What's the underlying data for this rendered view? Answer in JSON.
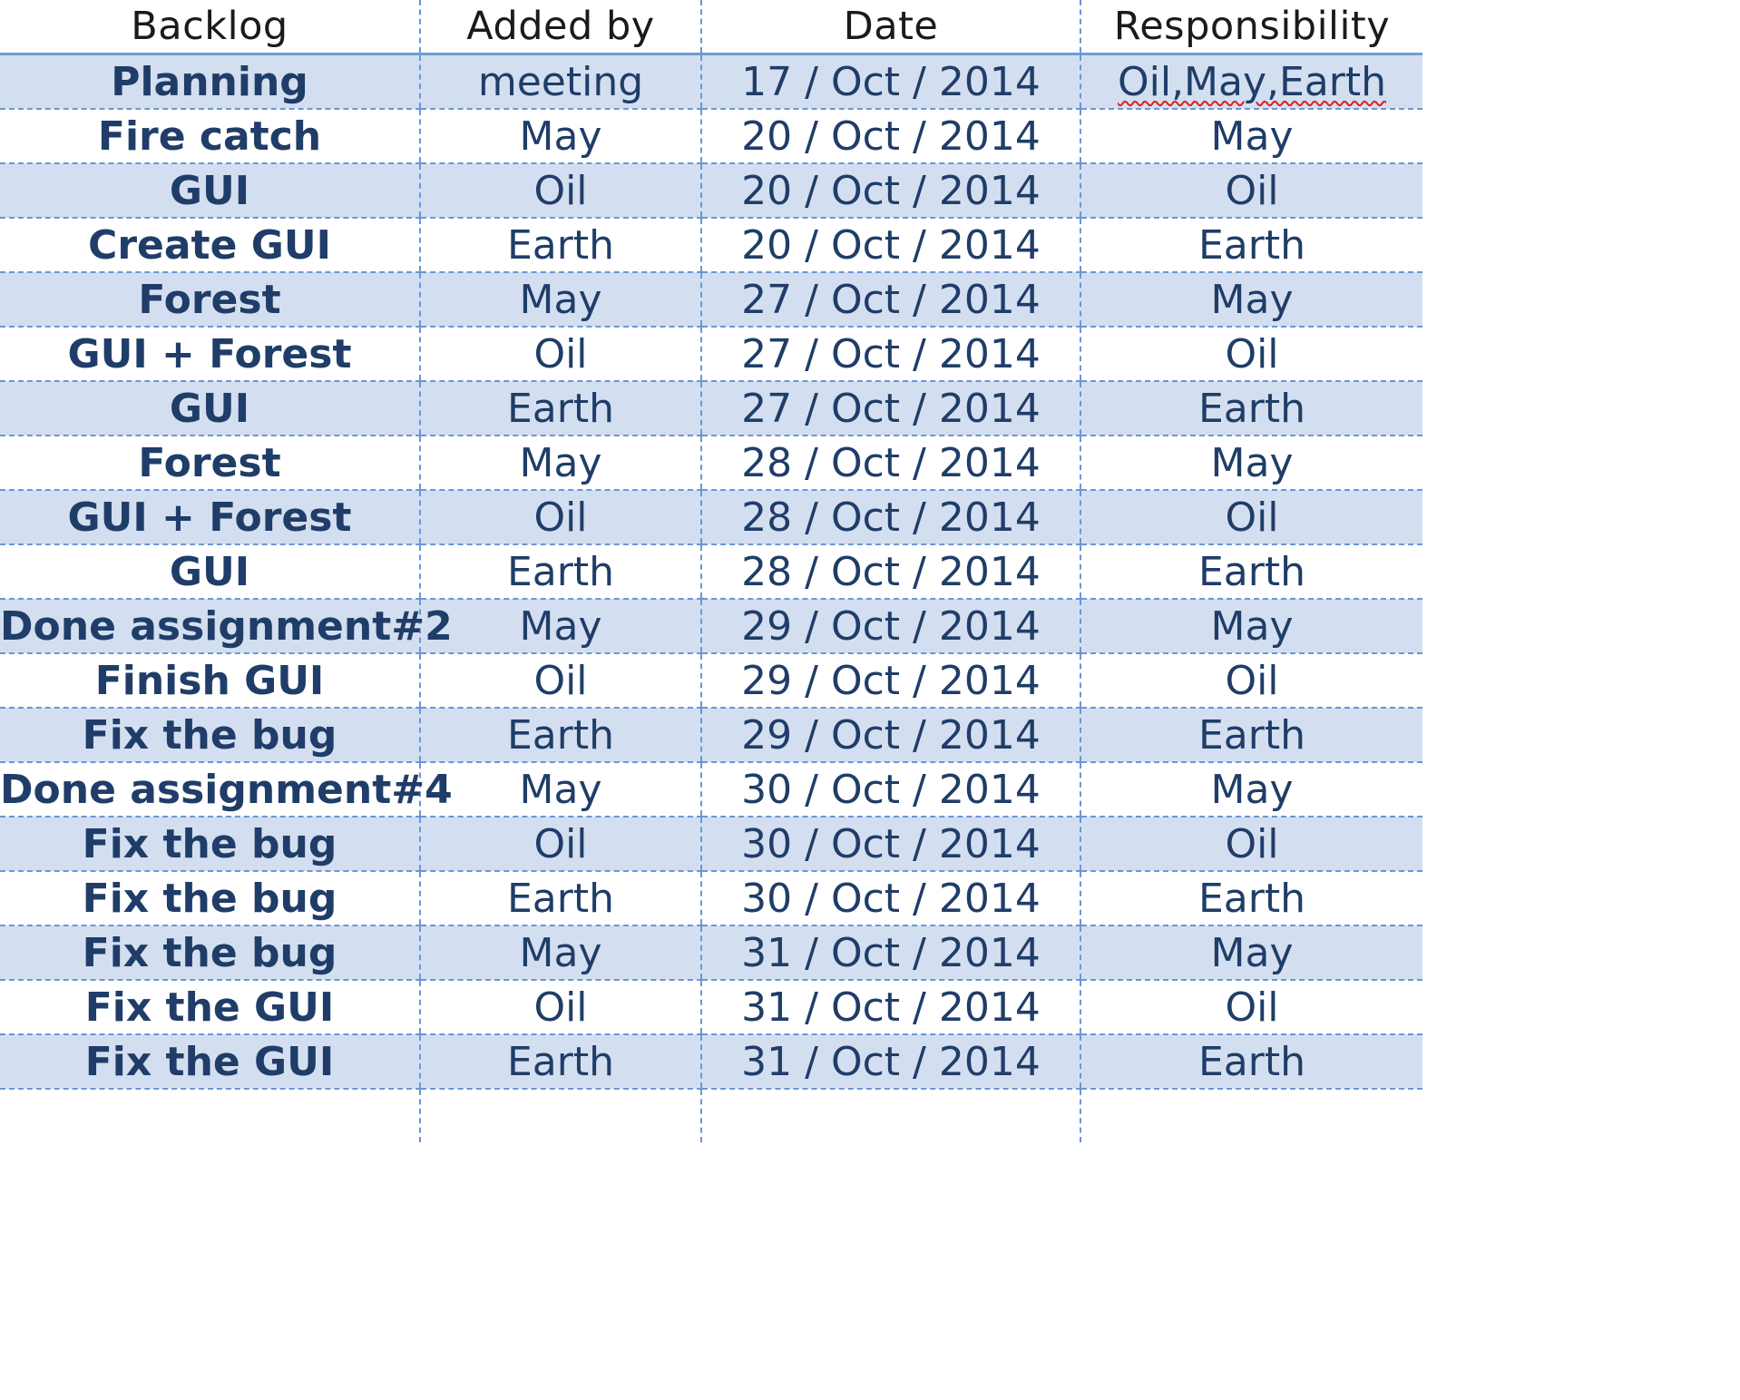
{
  "table": {
    "headers": [
      "Backlog",
      "Added by",
      "Date",
      "Responsibility"
    ],
    "rows": [
      {
        "backlog": "Planning",
        "added_by": "meeting",
        "date": "17 / Oct / 2014",
        "responsibility": "Oil,May,Earth"
      },
      {
        "backlog": "Fire catch",
        "added_by": "May",
        "date": "20 / Oct / 2014",
        "responsibility": "May"
      },
      {
        "backlog": "GUI",
        "added_by": "Oil",
        "date": "20 / Oct / 2014",
        "responsibility": "Oil"
      },
      {
        "backlog": "Create GUI",
        "added_by": "Earth",
        "date": "20 / Oct / 2014",
        "responsibility": "Earth"
      },
      {
        "backlog": "Forest",
        "added_by": "May",
        "date": "27 / Oct / 2014",
        "responsibility": "May"
      },
      {
        "backlog": "GUI + Forest",
        "added_by": "Oil",
        "date": "27 / Oct / 2014",
        "responsibility": "Oil"
      },
      {
        "backlog": "GUI",
        "added_by": "Earth",
        "date": "27 / Oct / 2014",
        "responsibility": "Earth"
      },
      {
        "backlog": "Forest",
        "added_by": "May",
        "date": "28 / Oct / 2014",
        "responsibility": "May"
      },
      {
        "backlog": "GUI + Forest",
        "added_by": "Oil",
        "date": "28 / Oct / 2014",
        "responsibility": "Oil"
      },
      {
        "backlog": "GUI",
        "added_by": "Earth",
        "date": "28 / Oct / 2014",
        "responsibility": "Earth"
      },
      {
        "backlog": "Done assignment#2",
        "added_by": "May",
        "date": "29 / Oct / 2014",
        "responsibility": "May"
      },
      {
        "backlog": "Finish GUI",
        "added_by": "Oil",
        "date": "29 / Oct / 2014",
        "responsibility": "Oil"
      },
      {
        "backlog": "Fix the bug",
        "added_by": "Earth",
        "date": "29 / Oct / 2014",
        "responsibility": "Earth"
      },
      {
        "backlog": "Done assignment#4",
        "added_by": "May",
        "date": "30 / Oct / 2014",
        "responsibility": "May"
      },
      {
        "backlog": "Fix the bug",
        "added_by": "Oil",
        "date": "30 / Oct / 2014",
        "responsibility": "Oil"
      },
      {
        "backlog": "Fix the bug",
        "added_by": "Earth",
        "date": "30 / Oct / 2014",
        "responsibility": "Earth"
      },
      {
        "backlog": "Fix the bug",
        "added_by": "May",
        "date": "31 / Oct / 2014",
        "responsibility": "May"
      },
      {
        "backlog": "Fix the GUI",
        "added_by": "Oil",
        "date": "31 / Oct / 2014",
        "responsibility": "Oil"
      },
      {
        "backlog": "Fix the GUI",
        "added_by": "Earth",
        "date": "31 / Oct / 2014",
        "responsibility": "Earth"
      }
    ]
  },
  "colors": {
    "row_shade": "#d3dff0",
    "text": "#1f3d68",
    "gridline": "#6b96d6",
    "spellcheck_underline": "#e0201c"
  }
}
